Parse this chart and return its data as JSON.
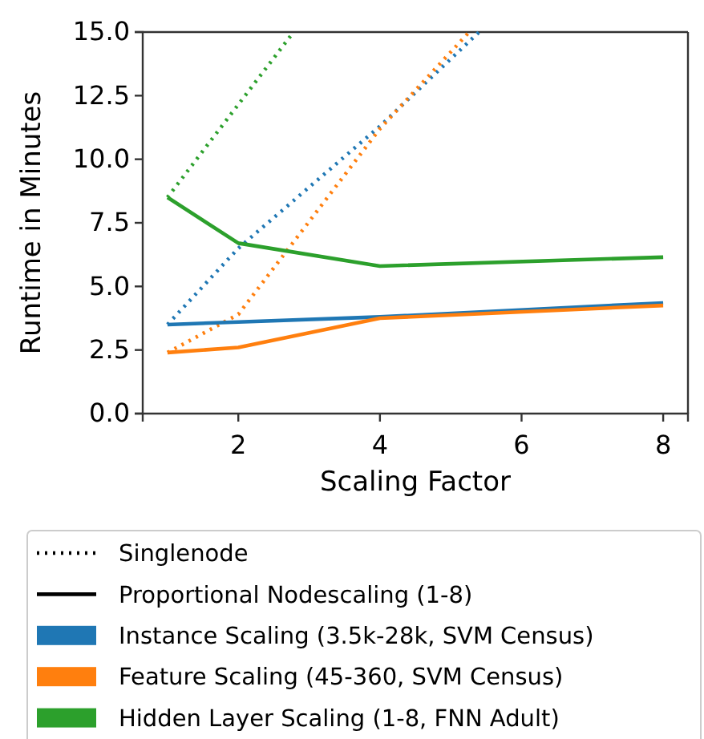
{
  "chart_data": {
    "type": "line",
    "xlabel": "Scaling Factor",
    "ylabel": "Runtime in Minutes",
    "xlim": [
      0.65,
      8.35
    ],
    "ylim": [
      0,
      15
    ],
    "xticks": [
      2,
      4,
      6,
      8
    ],
    "yticks": [
      {
        "value": 0,
        "label": "0.0"
      },
      {
        "value": 2.5,
        "label": "2.5"
      },
      {
        "value": 5,
        "label": "5.0"
      },
      {
        "value": 7.5,
        "label": "7.5"
      },
      {
        "value": 10,
        "label": "10.0"
      },
      {
        "value": 12.5,
        "label": "12.5"
      },
      {
        "value": 15,
        "label": "15.0"
      }
    ],
    "grid": false,
    "legend": "bottom",
    "annotations": [
      "Singlenode",
      "Proportional Nodescaling (1-8)"
    ],
    "series": [
      {
        "color": "#1f77b4",
        "line_style": "dotted",
        "x": [
          1,
          2,
          4,
          5.4
        ],
        "values": [
          3.5,
          6.5,
          11.3,
          15
        ]
      },
      {
        "color": "#ff7f0e",
        "line_style": "dotted",
        "x": [
          1,
          2,
          4,
          5.26
        ],
        "values": [
          2.4,
          3.9,
          11.2,
          15
        ]
      },
      {
        "color": "#2ca02c",
        "line_style": "dotted",
        "x": [
          1,
          2.78
        ],
        "values": [
          8.5,
          15
        ]
      },
      {
        "name": "Instance Scaling (3.5k-28k, SVM Census)",
        "color": "#1f77b4",
        "line_style": "solid",
        "x": [
          1,
          2,
          4,
          8
        ],
        "values": [
          3.5,
          3.6,
          3.8,
          4.35
        ]
      },
      {
        "name": "Feature Scaling (45-360, SVM Census)",
        "color": "#ff7f0e",
        "line_style": "solid",
        "x": [
          1,
          2,
          4,
          8
        ],
        "values": [
          2.4,
          2.6,
          3.75,
          4.25
        ]
      },
      {
        "name": "Hidden Layer Scaling (1-8, FNN Adult)",
        "color": "#2ca02c",
        "line_style": "solid",
        "x": [
          1,
          2,
          4,
          8
        ],
        "values": [
          8.5,
          6.7,
          5.8,
          6.15
        ]
      }
    ]
  }
}
